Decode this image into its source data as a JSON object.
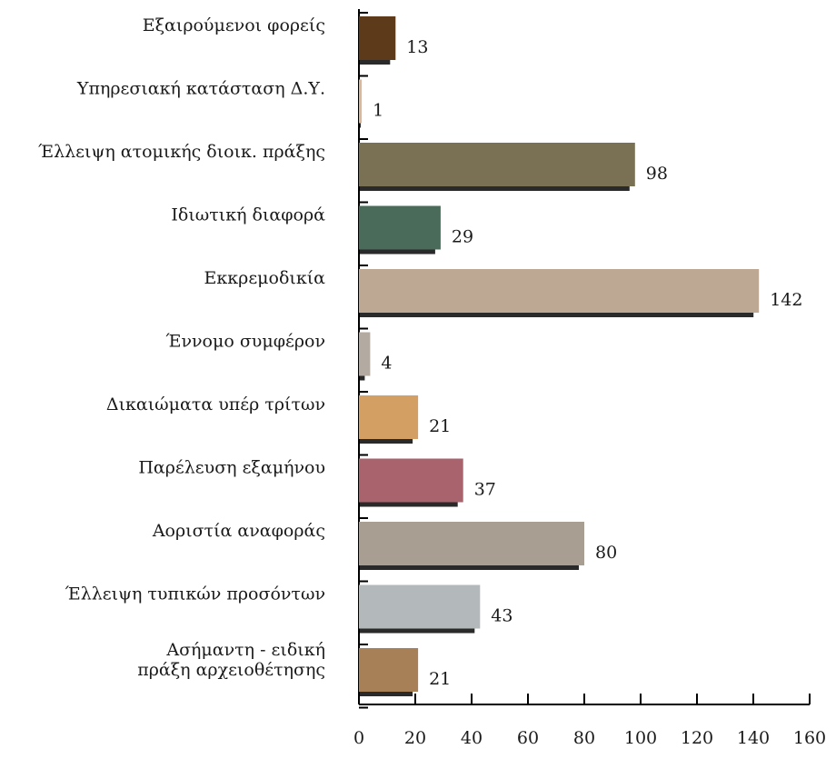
{
  "chart_data": {
    "type": "bar",
    "orientation": "horizontal",
    "categories": [
      "Εξαιρούμενοι φορείς",
      "Υπηρεσιακή κατάσταση Δ.Υ.",
      "Έλλειψη ατομικής διοικ. πράξης",
      "Ιδιωτική διαφορά",
      "Εκκρεμοδικία",
      "Έννομο συμφέρον",
      "Δικαιώματα υπέρ τρίτων",
      "Παρέλευση εξαμήνου",
      "Αοριστία αναφοράς",
      "Έλλειψη τυπικών προσόντων",
      "Ασήμαντη - ειδική πράξη αρχειοθέτησης"
    ],
    "category_lines": [
      [
        "Εξαιρούμενοι φορείς"
      ],
      [
        "Υπηρεσιακή κατάσταση Δ.Υ."
      ],
      [
        "Έλλειψη ατομικής διοικ. πράξης"
      ],
      [
        "Ιδιωτική διαφορά"
      ],
      [
        "Εκκρεμοδικία"
      ],
      [
        "Έννομο συμφέρον"
      ],
      [
        "Δικαιώματα υπέρ τρίτων"
      ],
      [
        "Παρέλευση εξαμήνου"
      ],
      [
        "Αοριστία αναφοράς"
      ],
      [
        "Έλλειψη τυπικών προσόντων"
      ],
      [
        "Ασήμαντη - ειδική",
        "πράξη αρχειοθέτησης"
      ]
    ],
    "values": [
      13,
      1,
      98,
      29,
      142,
      4,
      21,
      37,
      80,
      43,
      21
    ],
    "colors": [
      "#5c3a1a",
      "#d9b99b",
      "#7a7155",
      "#4a6b5a",
      "#bda893",
      "#b3aba2",
      "#d49f62",
      "#a8636c",
      "#a89f92",
      "#b3b9bb",
      "#a88058"
    ],
    "xlim": [
      0,
      160
    ],
    "xticks": [
      0,
      20,
      40,
      60,
      80,
      100,
      120,
      140,
      160
    ],
    "title": "",
    "xlabel": "",
    "ylabel": "",
    "grid": false,
    "legend": false
  }
}
